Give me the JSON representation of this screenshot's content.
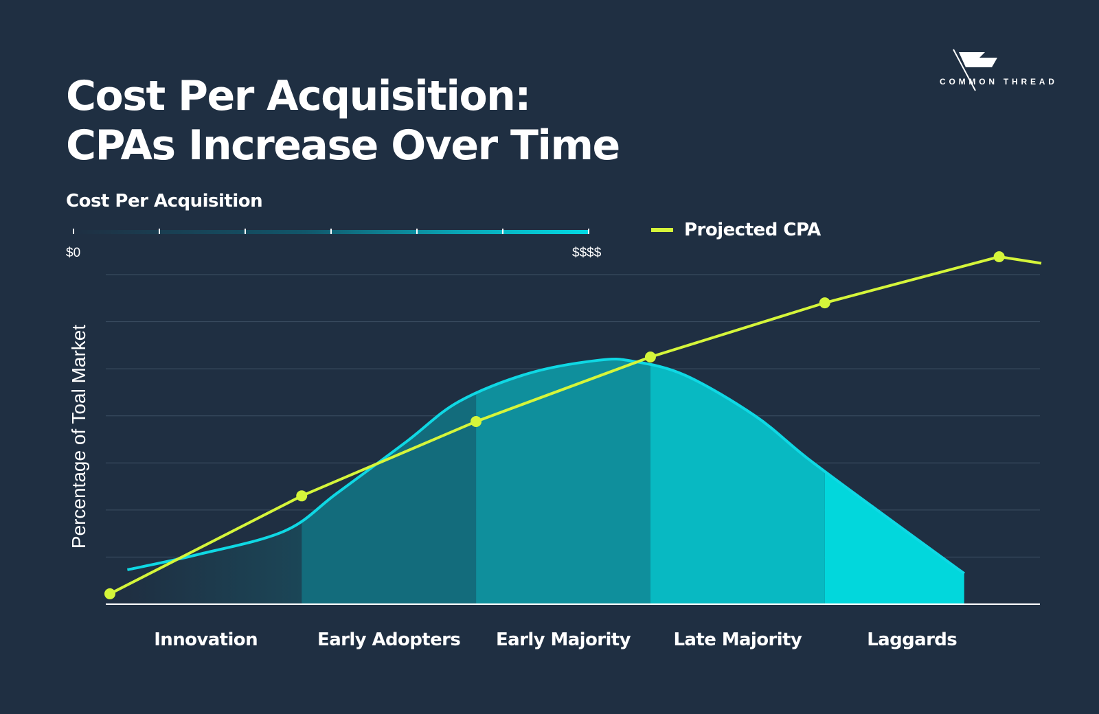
{
  "header": {
    "title_line1": "Cost Per Acquisition:",
    "title_line2": "CPAs Increase Over Time"
  },
  "logo": {
    "text": "COMMON THREAD",
    "icon": "flag-icon"
  },
  "cost_scale": {
    "heading": "Cost Per Acquisition",
    "min_label": "$0",
    "max_label": "$$$$",
    "ticks": 7
  },
  "colors": {
    "background": "#1f2f42",
    "cpa_line": "#d5f53a",
    "curve_stroke": "#0fd8e4",
    "segment_fills": [
      "#1b4657",
      "#136c7c",
      "#0f8f9c",
      "#08b9c2",
      "#02d7dc"
    ],
    "gridline": "#3e5064"
  },
  "chart_data": {
    "type": "area",
    "ylabel": "Percentage of Toal Market",
    "categories": [
      "Innovation",
      "Early Adopters",
      "Early Majority",
      "Late Majority",
      "Laggards"
    ],
    "adoption_curve": {
      "x": [
        0.1,
        0.5,
        1.0,
        1.3,
        1.7,
        2.0,
        2.4,
        2.8,
        3.0,
        3.3,
        3.7,
        4.0,
        4.4,
        4.9
      ],
      "y": [
        0.73,
        1.05,
        1.55,
        2.35,
        3.45,
        4.3,
        4.9,
        5.18,
        5.16,
        4.86,
        4.0,
        3.1,
        2.0,
        0.65
      ]
    },
    "series": [
      {
        "name": "Projected CPA",
        "x": [
          0.0,
          1.1,
          2.1,
          3.1,
          4.1,
          5.1
        ],
        "y": [
          0.22,
          2.3,
          3.88,
          5.25,
          6.4,
          7.38
        ]
      }
    ],
    "ylim": [
      0,
      7
    ],
    "xlim": [
      0,
      5.2
    ],
    "grid": true,
    "legend": "top"
  }
}
